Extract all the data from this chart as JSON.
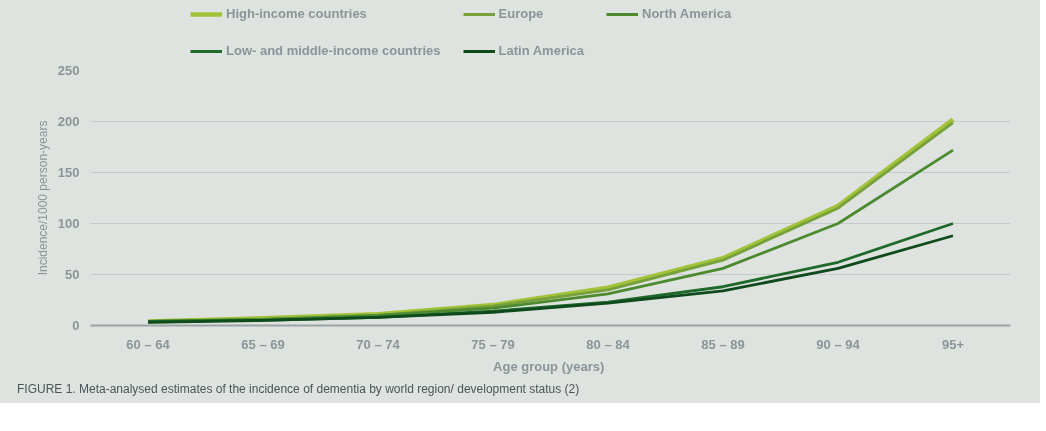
{
  "chart_data": {
    "type": "line",
    "xlabel": "Age group  (years)",
    "ylabel": "Incidence/1000 person-years",
    "categories": [
      "60 – 64",
      "65 – 69",
      "70 – 74",
      "75 – 79",
      "80 – 84",
      "85 – 89",
      "90 – 94",
      "95+"
    ],
    "series": [
      {
        "name": "High-income countries",
        "color": "#a2c23a",
        "values": [
          4,
          7,
          11,
          20,
          37,
          66,
          117,
          202
        ]
      },
      {
        "name": "Europe",
        "color": "#77a13a",
        "values": [
          4,
          6,
          10,
          19,
          35,
          64,
          115,
          199
        ]
      },
      {
        "name": "North America",
        "color": "#4c8a30",
        "values": [
          4,
          6,
          10,
          17,
          31,
          56,
          100,
          172
        ]
      },
      {
        "name": "Low- and middle-income countries",
        "color": "#1f6a2a",
        "values": [
          4,
          5,
          8,
          14,
          23,
          38,
          62,
          100
        ]
      },
      {
        "name": "Latin America",
        "color": "#0e4a1c",
        "values": [
          3,
          5,
          8,
          13,
          22,
          34,
          56,
          88
        ]
      }
    ],
    "ylim": [
      0,
      250
    ],
    "yticks": [
      0,
      50,
      100,
      150,
      200,
      250
    ],
    "grid": "y",
    "legend": "top",
    "marker": "none",
    "line_style": "solid",
    "annotations": [
      "FIGURE 1.  Meta-analysed estimates of the incidence of dementia by world region/ development status (2)"
    ]
  }
}
